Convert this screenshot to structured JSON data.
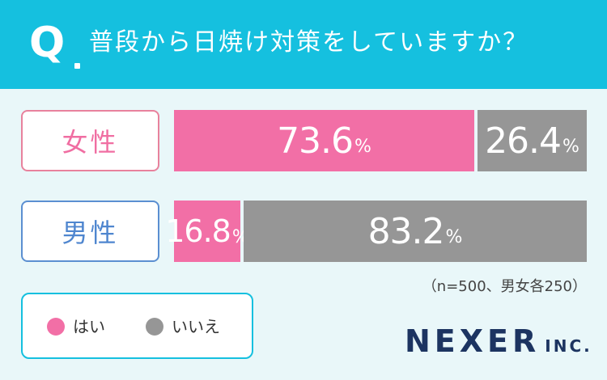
{
  "header": {
    "q_mark": "Q",
    "question": "普段から日焼け対策をしていますか？"
  },
  "chart_data": {
    "type": "bar",
    "orientation": "horizontal",
    "stacked": "100%",
    "categories": [
      "女性",
      "男性"
    ],
    "series": [
      {
        "name": "はい",
        "values": [
          73.6,
          16.8
        ],
        "color": "#f26fa6"
      },
      {
        "name": "いいえ",
        "values": [
          26.4,
          83.2
        ],
        "color": "#969696"
      }
    ],
    "value_labels": {
      "female_yes": "73.6",
      "female_no": "26.4",
      "male_yes": "16.8",
      "male_no": "83.2"
    },
    "unit": "%",
    "xlim": [
      0,
      100
    ],
    "note": "（n=500、男女各250）",
    "legend_position": "bottom-left",
    "grid": false
  },
  "legend": {
    "yes_label": "はい",
    "no_label": "いいえ"
  },
  "logo": {
    "main": "NEXER",
    "sub": "INC."
  },
  "colors": {
    "header": "#15c0df",
    "yes": "#f26fa6",
    "no": "#969696",
    "female_border": "#e8829d",
    "male_border": "#5b8fd1",
    "logo": "#1c3461"
  }
}
